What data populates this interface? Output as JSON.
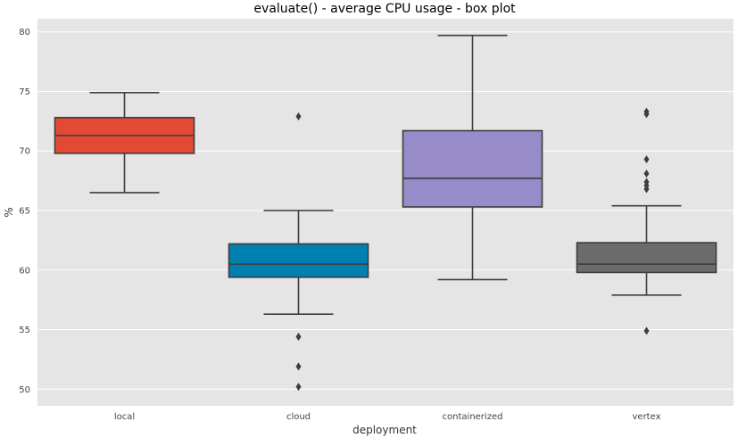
{
  "chart_data": {
    "type": "box",
    "title": "evaluate() - average CPU usage - box plot",
    "xlabel": "deployment",
    "ylabel": "%",
    "ylim": [
      48.6,
      81.1
    ],
    "yticks": [
      50,
      55,
      60,
      65,
      70,
      75,
      80
    ],
    "grid": true,
    "categories": [
      "local",
      "cloud",
      "containerized",
      "vertex"
    ],
    "colors": [
      "#e24a33",
      "#0080b0",
      "#978bc9",
      "#6b6b6b"
    ],
    "boxes": [
      {
        "name": "local",
        "whisker_low": 66.5,
        "q1": 69.8,
        "median": 71.3,
        "q3": 72.8,
        "whisker_high": 74.9,
        "outliers": []
      },
      {
        "name": "cloud",
        "whisker_low": 56.3,
        "q1": 59.4,
        "median": 60.5,
        "q3": 62.2,
        "whisker_high": 65.0,
        "outliers": [
          72.9,
          54.4,
          51.9,
          50.2
        ]
      },
      {
        "name": "containerized",
        "whisker_low": 59.2,
        "q1": 65.3,
        "median": 67.7,
        "q3": 71.7,
        "whisker_high": 79.7,
        "outliers": []
      },
      {
        "name": "vertex",
        "whisker_low": 57.9,
        "q1": 59.8,
        "median": 60.5,
        "q3": 62.3,
        "whisker_high": 65.4,
        "outliers": [
          73.3,
          73.1,
          69.3,
          68.1,
          67.4,
          67.1,
          66.8,
          54.9
        ]
      }
    ]
  }
}
